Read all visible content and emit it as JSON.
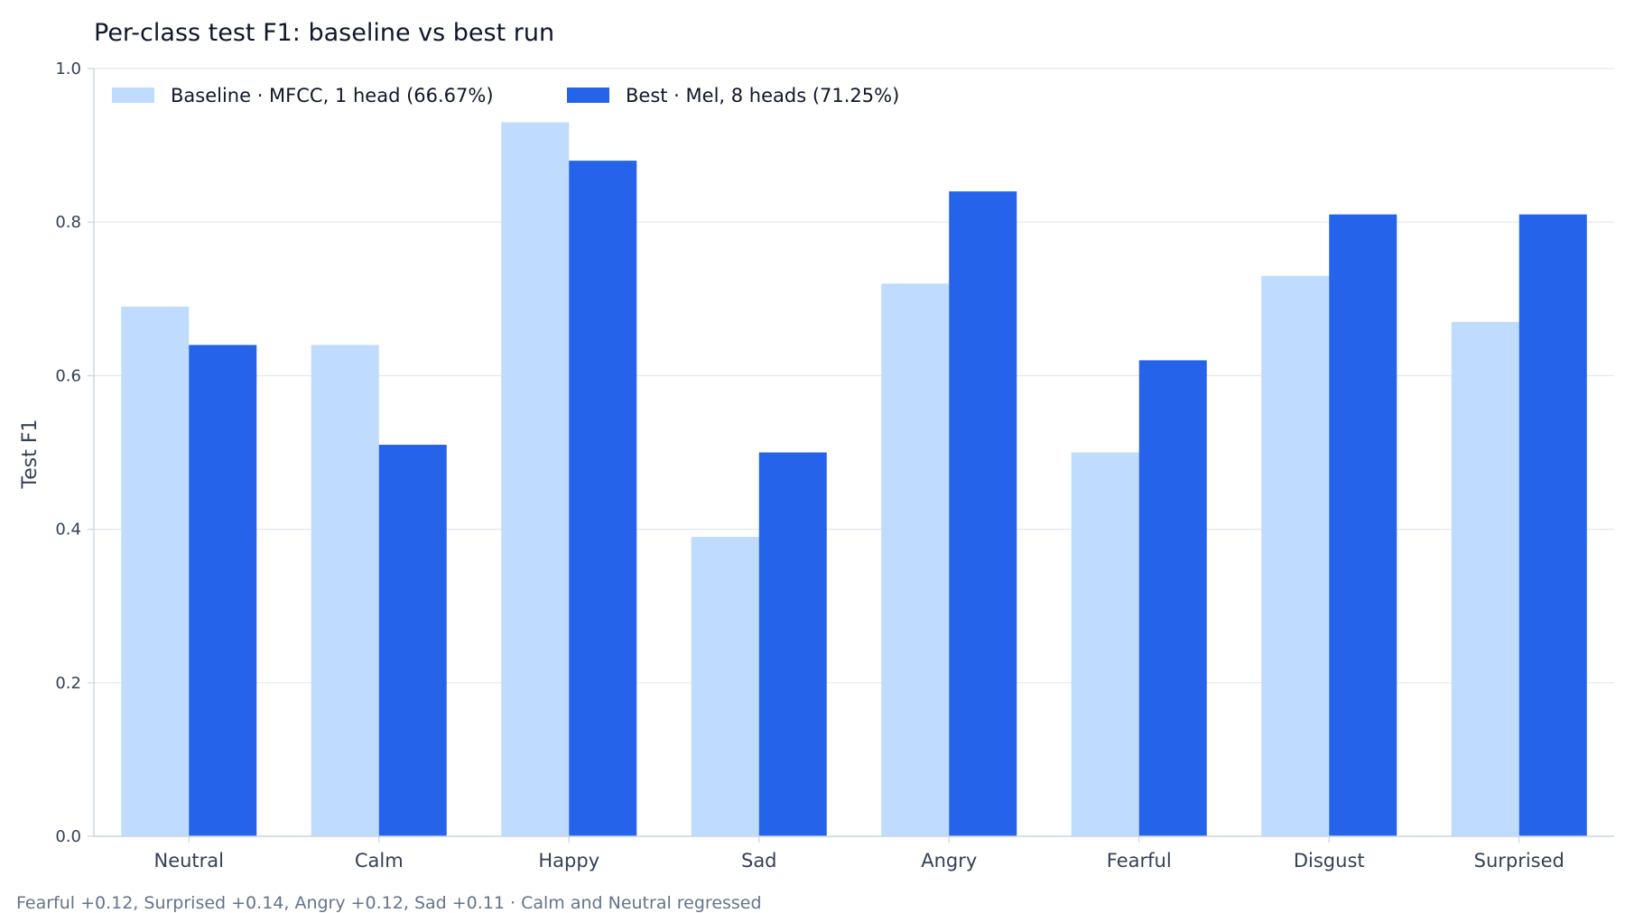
{
  "chart_data": {
    "type": "bar",
    "title": "Per-class test F1: baseline vs best run",
    "xlabel": "",
    "ylabel": "Test F1",
    "ylim": [
      0,
      1.0
    ],
    "yticks": [
      "0.0",
      "0.2",
      "0.4",
      "0.6",
      "0.8",
      "1.0"
    ],
    "grid": true,
    "legend_position": "top-left",
    "categories": [
      "Neutral",
      "Calm",
      "Happy",
      "Sad",
      "Angry",
      "Fearful",
      "Disgust",
      "Surprised"
    ],
    "series": [
      {
        "name": "Baseline · MFCC, 1 head (66.67%)",
        "color": "#bfdbfe",
        "values": [
          0.69,
          0.64,
          0.93,
          0.39,
          0.72,
          0.5,
          0.73,
          0.67
        ]
      },
      {
        "name": "Best · Mel, 8 heads (71.25%)",
        "color": "#2563eb",
        "values": [
          0.64,
          0.51,
          0.88,
          0.5,
          0.84,
          0.62,
          0.81,
          0.81
        ]
      }
    ],
    "annotation": "Fearful +0.12, Surprised +0.14, Angry +0.12, Sad +0.11 · Calm and Neutral regressed"
  },
  "colors": {
    "grid": "#e2e8f0",
    "axis": "#cbd5e1"
  }
}
